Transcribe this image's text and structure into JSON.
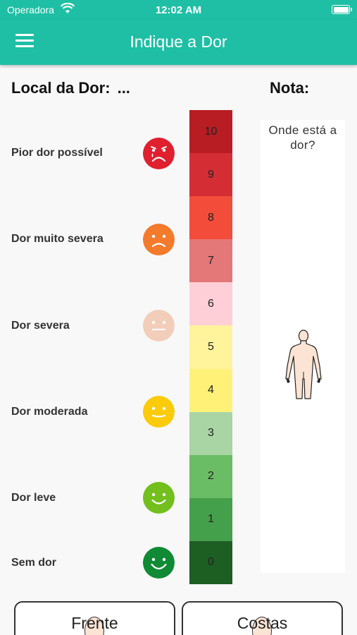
{
  "status_bar": {
    "carrier": "Operadora",
    "time": "12:02 AM"
  },
  "nav": {
    "title": "Indique a Dor"
  },
  "header": {
    "local_label": "Local da Dor:",
    "local_value": "...",
    "nota_label": "Nota:"
  },
  "pain_levels": [
    {
      "label": "Pior dor possível",
      "face": "crying-face-icon",
      "color": "#e0202e"
    },
    {
      "label": "Dor muito severa",
      "face": "sad-face-icon",
      "color": "#f47a2c"
    },
    {
      "label": "Dor severa",
      "face": "neutral-face-icon",
      "color": "#f2cdb9"
    },
    {
      "label": "Dor moderada",
      "face": "slight-smile-face-icon",
      "color": "#fccb0c"
    },
    {
      "label": "Dor leve",
      "face": "smile-face-icon",
      "color": "#72bf1e"
    },
    {
      "label": "Sem dor",
      "face": "big-smile-face-icon",
      "color": "#108a34"
    }
  ],
  "scale": [
    {
      "value": "10",
      "color": "#b71d22"
    },
    {
      "value": "9",
      "color": "#d42e34"
    },
    {
      "value": "8",
      "color": "#f34c3a"
    },
    {
      "value": "7",
      "color": "#e47778"
    },
    {
      "value": "6",
      "color": "#fecfd7"
    },
    {
      "value": "5",
      "color": "#fff39c"
    },
    {
      "value": "4",
      "color": "#fff177"
    },
    {
      "value": "3",
      "color": "#a9d5a4"
    },
    {
      "value": "2",
      "color": "#6abd64"
    },
    {
      "value": "1",
      "color": "#44a04a"
    },
    {
      "value": "0",
      "color": "#1d5e23"
    }
  ],
  "body_panel": {
    "question": "Onde está a dor?"
  },
  "buttons": {
    "front": "Frente",
    "back": "Costas"
  }
}
